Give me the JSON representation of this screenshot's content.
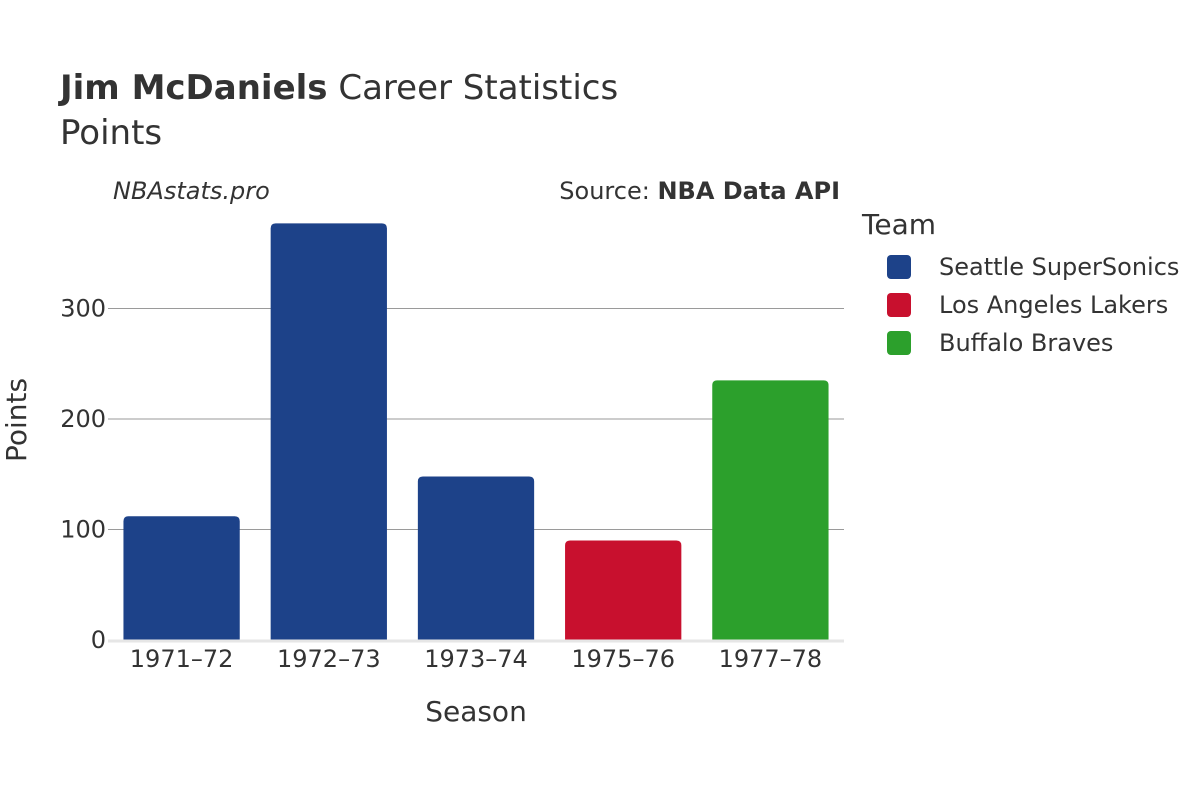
{
  "header": {
    "title_bold": "Jim McDaniels",
    "title_rest": " Career Statistics",
    "subtitle": "Points"
  },
  "credits": {
    "site": "NBAstats.pro",
    "source_prefix": "Source: ",
    "source_name": "NBA Data API"
  },
  "legend": {
    "title": "Team",
    "items": [
      {
        "label": "Seattle SuperSonics",
        "color": "#1d4289"
      },
      {
        "label": "Los Angeles Lakers",
        "color": "#c8102e"
      },
      {
        "label": "Buffalo Braves",
        "color": "#2ca02c"
      }
    ]
  },
  "chart_data": {
    "type": "bar",
    "title": "Jim McDaniels Career Statistics",
    "subtitle": "Points",
    "xlabel": "Season",
    "ylabel": "Points",
    "categories": [
      "1971–72",
      "1972–73",
      "1973–74",
      "1975–76",
      "1977–78"
    ],
    "values": [
      112,
      377,
      148,
      90,
      235
    ],
    "teams": [
      "Seattle SuperSonics",
      "Seattle SuperSonics",
      "Seattle SuperSonics",
      "Los Angeles Lakers",
      "Buffalo Braves"
    ],
    "ylim": [
      0,
      380
    ],
    "yticks": [
      0,
      100,
      200,
      300
    ],
    "grid": true,
    "legend_position": "right"
  }
}
